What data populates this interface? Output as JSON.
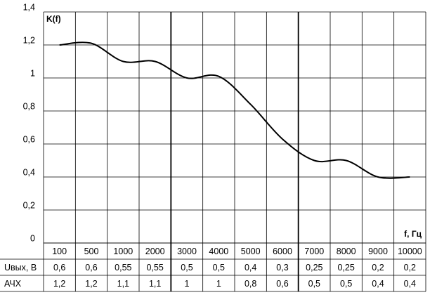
{
  "chart_data": {
    "type": "line",
    "y_label": "K(f)",
    "x_label": "f, Гц",
    "categories": [
      "100",
      "500",
      "1000",
      "2000",
      "3000",
      "4000",
      "5000",
      "6000",
      "7000",
      "8000",
      "9000",
      "10000"
    ],
    "values": [
      1.2,
      1.21,
      1.1,
      1.1,
      1.0,
      1.01,
      0.84,
      0.63,
      0.5,
      0.5,
      0.4,
      0.4
    ],
    "color": "#000000",
    "ylim": [
      0,
      1.4
    ],
    "yticks": [
      0,
      {
        "value": 0.2,
        "label": "0,2"
      },
      {
        "value": 0.4,
        "label": "0,4"
      },
      {
        "value": 0.6,
        "label": "0,6"
      },
      {
        "value": 0.8,
        "label": "0,8"
      },
      1,
      {
        "value": 1.2,
        "label": "1,2"
      },
      {
        "value": 1.4,
        "label": "1,4"
      }
    ],
    "grid": true
  },
  "table": {
    "rows": [
      {
        "label": "Uвых, В",
        "cells": [
          "0,6",
          "0,6",
          "0,55",
          "0,55",
          "0,5",
          "0,5",
          "0,4",
          "0,3",
          "0,25",
          "0,25",
          "0,2",
          "0,2"
        ]
      },
      {
        "label": "АЧХ",
        "cells": [
          "1,2",
          "1,2",
          "1,1",
          "1,1",
          "1",
          "1",
          "0,8",
          "0,6",
          "0,5",
          "0,5",
          "0,4",
          "0,4"
        ]
      }
    ]
  }
}
